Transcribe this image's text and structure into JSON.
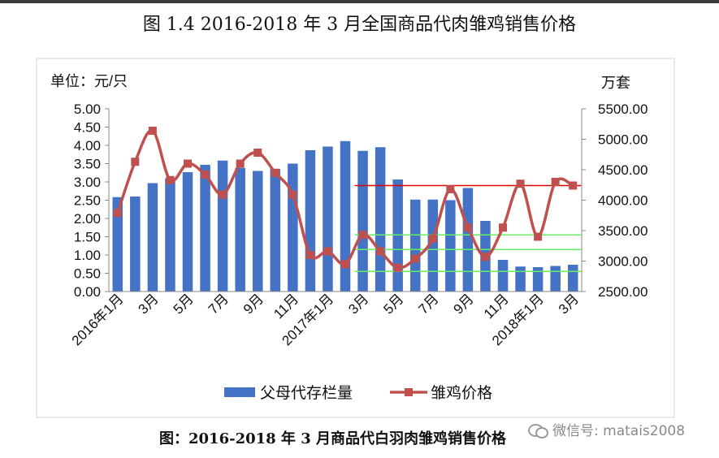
{
  "figure_title": "图 1.4  2016-2018 年 3 月全国商品代肉雏鸡销售价格",
  "caption": "图：2016-2018 年 3 月商品代白羽肉雏鸡销售价格",
  "watermark": "微信号: matais2008",
  "chart_data": {
    "type": "bar+line",
    "left_axis": {
      "unit_label": "单位：元/只",
      "range": [
        0,
        5
      ],
      "ticks": [
        "0.00",
        "0.50",
        "1.00",
        "1.50",
        "2.00",
        "2.50",
        "3.00",
        "3.50",
        "4.00",
        "4.50",
        "5.00"
      ]
    },
    "right_axis": {
      "unit_label": "万套",
      "range": [
        2500,
        5500
      ],
      "ticks": [
        "2500.00",
        "3000.00",
        "3500.00",
        "4000.00",
        "4500.00",
        "5000.00",
        "5500.00"
      ]
    },
    "x_tick_labels": [
      "2016年1月",
      "3月",
      "5月",
      "7月",
      "9月",
      "11月",
      "2017年1月",
      "3月",
      "5月",
      "7月",
      "9月",
      "11月",
      "2018年1月",
      "3月"
    ],
    "categories": [
      "2016-01",
      "2016-02",
      "2016-03",
      "2016-04",
      "2016-05",
      "2016-06",
      "2016-07",
      "2016-08",
      "2016-09",
      "2016-10",
      "2016-11",
      "2016-12",
      "2017-01",
      "2017-02",
      "2017-03",
      "2017-04",
      "2017-05",
      "2017-06",
      "2017-07",
      "2017-08",
      "2017-09",
      "2017-10",
      "2017-11",
      "2017-12",
      "2018-01",
      "2018-02",
      "2018-03"
    ],
    "series": [
      {
        "name": "父母代存栏量",
        "kind": "bar",
        "axis": "right",
        "color": "#4472c4",
        "values": [
          4050,
          4060,
          4280,
          4360,
          4460,
          4580,
          4650,
          4530,
          4480,
          4510,
          4600,
          4820,
          4880,
          4970,
          4810,
          4870,
          4340,
          4010,
          4010,
          4000,
          4200,
          3660,
          3020,
          2910,
          2900,
          2920,
          2940
        ]
      },
      {
        "name": "雏鸡价格",
        "kind": "line",
        "axis": "left",
        "color": "#c0504d",
        "values": [
          2.15,
          3.55,
          4.4,
          3.05,
          3.5,
          3.2,
          2.65,
          3.5,
          3.8,
          3.25,
          2.65,
          1.0,
          1.1,
          0.75,
          1.55,
          1.1,
          0.65,
          0.9,
          1.45,
          2.8,
          1.75,
          0.95,
          1.75,
          2.95,
          1.5,
          3.0,
          2.9
        ]
      }
    ],
    "reference_lines": [
      {
        "axis": "left",
        "value": 2.9,
        "from": "2017-03",
        "to": "2018-03",
        "color": "#e00000"
      },
      {
        "axis": "left",
        "value": 1.55,
        "from": "2017-03",
        "to": "2018-03",
        "color": "#66ee66"
      },
      {
        "axis": "left",
        "value": 1.15,
        "from": "2017-03",
        "to": "2018-03",
        "color": "#66ee66"
      },
      {
        "axis": "left",
        "value": 0.55,
        "from": "2017-03",
        "to": "2018-03",
        "color": "#66ee66"
      }
    ],
    "legend": {
      "placement": "bottom",
      "items": [
        "父母代存栏量",
        "雏鸡价格"
      ]
    },
    "grid": false
  }
}
